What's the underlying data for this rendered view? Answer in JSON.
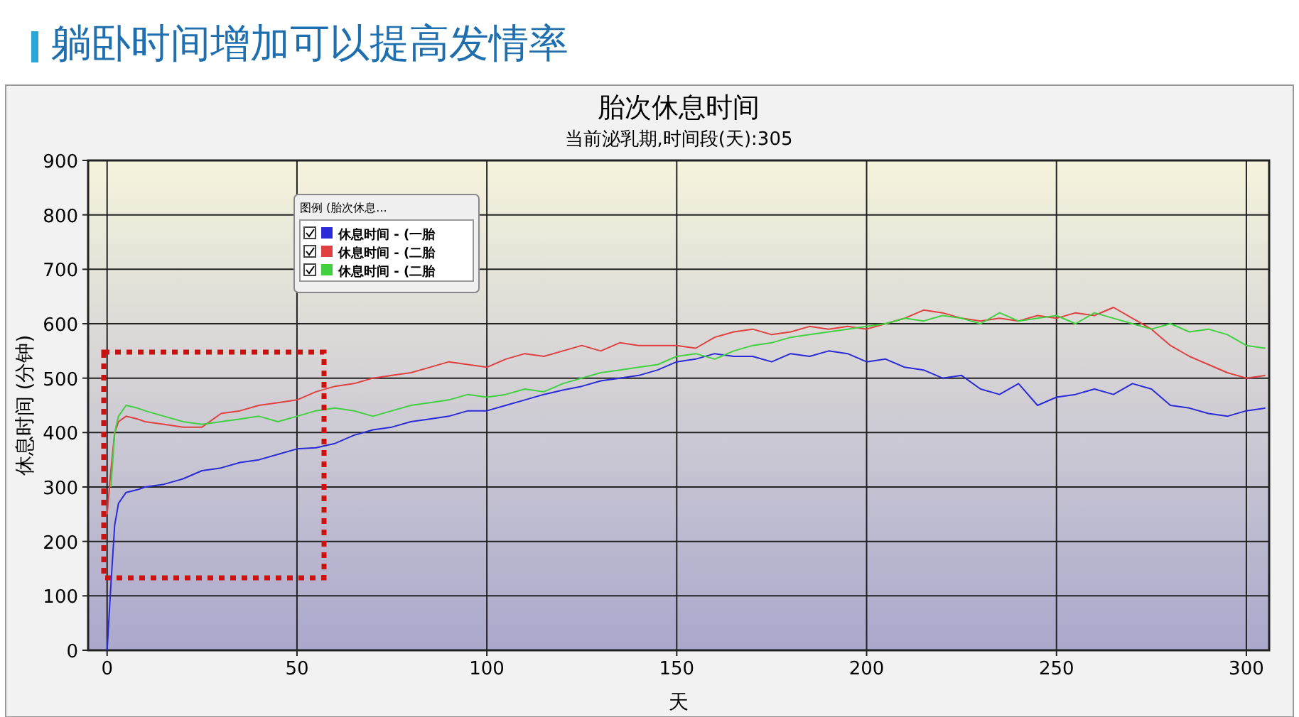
{
  "chart_data": {
    "type": "line",
    "title": "胎次休息时间",
    "subtitle": "当前泌乳期,时间段(天):305",
    "annotations": [
      "躺卧时间增加可以提高发情率"
    ],
    "xlabel": "天",
    "ylabel": "休息时间 (分钟)",
    "legend_title": "图例 (胎次休息...",
    "xlim": [
      -5,
      306
    ],
    "xticks": [
      0,
      50,
      100,
      150,
      200,
      250,
      300
    ],
    "ylim": [
      0,
      900
    ],
    "yticks": [
      0,
      100,
      200,
      300,
      400,
      500,
      600,
      700,
      800,
      900
    ],
    "grid": true,
    "legend": "top left",
    "marker": "none",
    "line_style": "solid",
    "series": [
      {
        "name": "休息时间 - (一胎",
        "color": "#2a2ad8",
        "x": [
          0,
          1,
          2,
          3,
          5,
          8,
          10,
          15,
          20,
          25,
          30,
          35,
          40,
          45,
          50,
          55,
          60,
          65,
          70,
          75,
          80,
          85,
          90,
          95,
          100,
          105,
          110,
          115,
          120,
          125,
          130,
          135,
          140,
          145,
          150,
          155,
          160,
          165,
          170,
          175,
          180,
          185,
          190,
          195,
          200,
          205,
          210,
          215,
          220,
          225,
          230,
          235,
          240,
          245,
          250,
          255,
          260,
          265,
          270,
          275,
          280,
          285,
          290,
          295,
          300,
          305
        ],
        "values": [
          0,
          120,
          230,
          270,
          290,
          295,
          300,
          305,
          315,
          330,
          335,
          345,
          350,
          360,
          370,
          372,
          380,
          395,
          405,
          410,
          420,
          425,
          430,
          440,
          440,
          450,
          460,
          470,
          478,
          485,
          495,
          500,
          505,
          515,
          530,
          535,
          545,
          540,
          540,
          530,
          545,
          540,
          550,
          545,
          530,
          535,
          520,
          515,
          500,
          505,
          480,
          470,
          490,
          450,
          465,
          470,
          480,
          470,
          490,
          480,
          450,
          445,
          435,
          430,
          440,
          445
        ]
      },
      {
        "name": "休息时间 - (二胎",
        "color": "#e04040",
        "x": [
          0,
          1,
          2,
          3,
          5,
          8,
          10,
          15,
          20,
          25,
          30,
          35,
          40,
          45,
          50,
          55,
          60,
          65,
          70,
          75,
          80,
          85,
          90,
          95,
          100,
          105,
          110,
          115,
          120,
          125,
          130,
          135,
          140,
          145,
          150,
          155,
          160,
          165,
          170,
          175,
          180,
          185,
          190,
          195,
          200,
          205,
          210,
          215,
          220,
          225,
          230,
          235,
          240,
          245,
          250,
          255,
          260,
          265,
          270,
          275,
          280,
          285,
          290,
          295,
          300,
          305
        ],
        "values": [
          250,
          330,
          400,
          420,
          430,
          425,
          420,
          415,
          410,
          410,
          435,
          440,
          450,
          455,
          460,
          475,
          485,
          490,
          500,
          505,
          510,
          520,
          530,
          525,
          520,
          535,
          545,
          540,
          550,
          560,
          550,
          565,
          560,
          560,
          560,
          555,
          575,
          585,
          590,
          580,
          585,
          595,
          590,
          595,
          590,
          600,
          610,
          625,
          620,
          610,
          605,
          610,
          605,
          615,
          610,
          620,
          615,
          630,
          610,
          590,
          560,
          540,
          525,
          510,
          500,
          505
        ]
      },
      {
        "name": "休息时间 - (二胎",
        "color": "#40d040",
        "x": [
          1,
          2,
          3,
          5,
          8,
          10,
          15,
          20,
          25,
          30,
          35,
          40,
          45,
          50,
          55,
          60,
          65,
          70,
          75,
          80,
          85,
          90,
          95,
          100,
          105,
          110,
          115,
          120,
          125,
          130,
          135,
          140,
          145,
          150,
          155,
          160,
          165,
          170,
          175,
          180,
          185,
          190,
          195,
          200,
          205,
          210,
          215,
          220,
          225,
          230,
          235,
          240,
          245,
          250,
          255,
          260,
          265,
          270,
          275,
          280,
          285,
          290,
          295,
          300,
          305
        ],
        "values": [
          300,
          400,
          430,
          450,
          445,
          440,
          430,
          420,
          415,
          420,
          425,
          430,
          420,
          430,
          440,
          445,
          440,
          430,
          440,
          450,
          455,
          460,
          470,
          465,
          470,
          480,
          475,
          490,
          500,
          510,
          515,
          520,
          525,
          540,
          545,
          535,
          550,
          560,
          565,
          575,
          580,
          585,
          590,
          595,
          600,
          610,
          605,
          615,
          610,
          600,
          620,
          605,
          610,
          615,
          600,
          620,
          610,
          600,
          590,
          600,
          585,
          590,
          580,
          560,
          555
        ]
      }
    ]
  }
}
